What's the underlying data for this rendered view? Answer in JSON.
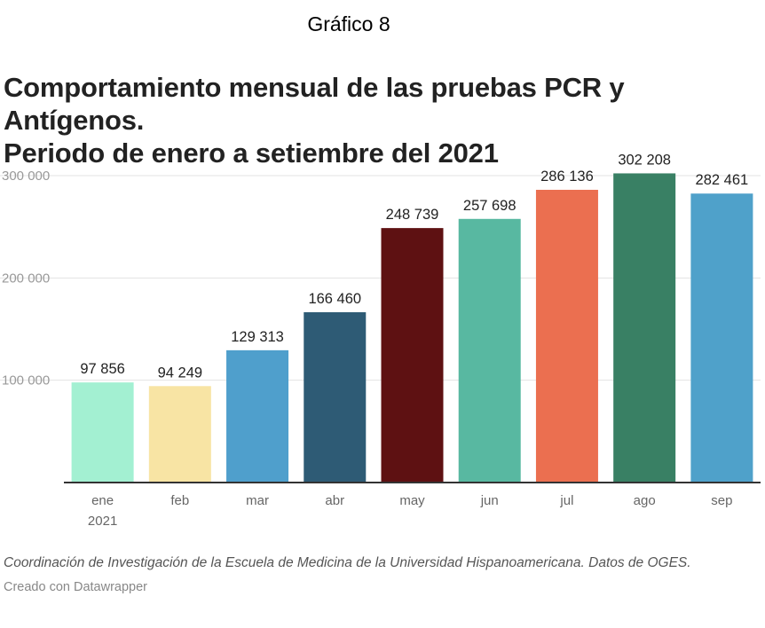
{
  "header": {
    "figure_label": "Gráfico 8",
    "title_line1": "Comportamiento mensual de las pruebas PCR y Antígenos.",
    "title_line2": "Periodo de enero a setiembre del 2021"
  },
  "chart_data": {
    "type": "bar",
    "categories": [
      "ene",
      "feb",
      "mar",
      "abr",
      "may",
      "jun",
      "jul",
      "ago",
      "sep"
    ],
    "category_sublabels": [
      "2021",
      "",
      "",
      "",
      "",
      "",
      "",
      "",
      ""
    ],
    "values": [
      97856,
      94249,
      129313,
      166460,
      248739,
      257698,
      286136,
      302208,
      282461
    ],
    "value_labels": [
      "97 856",
      "94 249",
      "129 313",
      "166 460",
      "248 739",
      "257 698",
      "286 136",
      "302 208",
      "282 461"
    ],
    "colors": [
      "#a3f0d2",
      "#f8e4a4",
      "#4f9fcc",
      "#2e5b75",
      "#5e1112",
      "#58b8a1",
      "#eb6f50",
      "#398064",
      "#4fa1ca"
    ],
    "yticks": [
      100000,
      200000,
      300000
    ],
    "ytick_labels": [
      "100 000",
      "200 000",
      "300 000"
    ],
    "ylim": [
      0,
      300000
    ],
    "grid": true,
    "xlabel": "",
    "ylabel": ""
  },
  "footer": {
    "source": "Coordinación de Investigación de la Escuela de Medicina de la Universidad Hispanoamericana. Datos de OGES.",
    "credit": "Creado con Datawrapper"
  }
}
